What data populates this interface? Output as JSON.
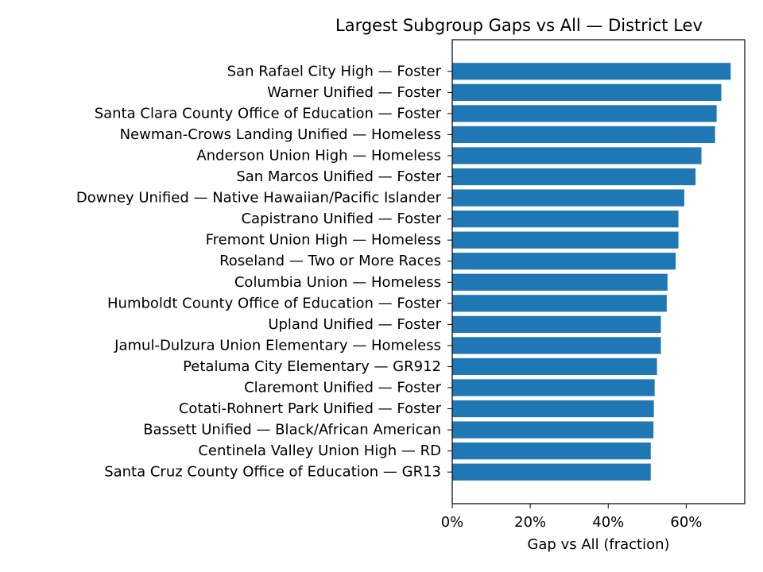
{
  "chart_data": {
    "type": "bar",
    "orientation": "horizontal",
    "title": "Largest Subgroup Gaps vs All — District Lev",
    "xlabel": "Gap vs All (fraction)",
    "ylabel": "",
    "xlim": [
      0,
      0.75
    ],
    "xticks": [
      0,
      0.2,
      0.4,
      0.6
    ],
    "xtick_labels": [
      "0%",
      "20%",
      "40%",
      "60%"
    ],
    "grid": false,
    "bar_color": "#1f77b4",
    "categories": [
      "San Rafael City High — Foster",
      "Warner Unified — Foster",
      "Santa Clara County Office of Education — Foster",
      "Newman-Crows Landing Unified — Homeless",
      "Anderson Union High — Homeless",
      "San Marcos Unified — Foster",
      "Downey Unified — Native Hawaiian/Pacific Islander",
      "Capistrano Unified — Foster",
      "Fremont Union High — Homeless",
      "Roseland — Two or More Races",
      "Columbia Union — Homeless",
      "Humboldt County Office of Education — Foster",
      "Upland Unified — Foster",
      "Jamul-Dulzura Union Elementary — Homeless",
      "Petaluma City Elementary — GR912",
      "Claremont Unified — Foster",
      "Cotati-Rohnert Park Unified — Foster",
      "Bassett Unified — Black/African American",
      "Centinela Valley Union High — RD",
      "Santa Cruz County Office of Education — GR13"
    ],
    "values": [
      0.714,
      0.69,
      0.678,
      0.674,
      0.639,
      0.624,
      0.595,
      0.58,
      0.58,
      0.573,
      0.552,
      0.55,
      0.535,
      0.535,
      0.525,
      0.519,
      0.517,
      0.516,
      0.509,
      0.509
    ]
  }
}
